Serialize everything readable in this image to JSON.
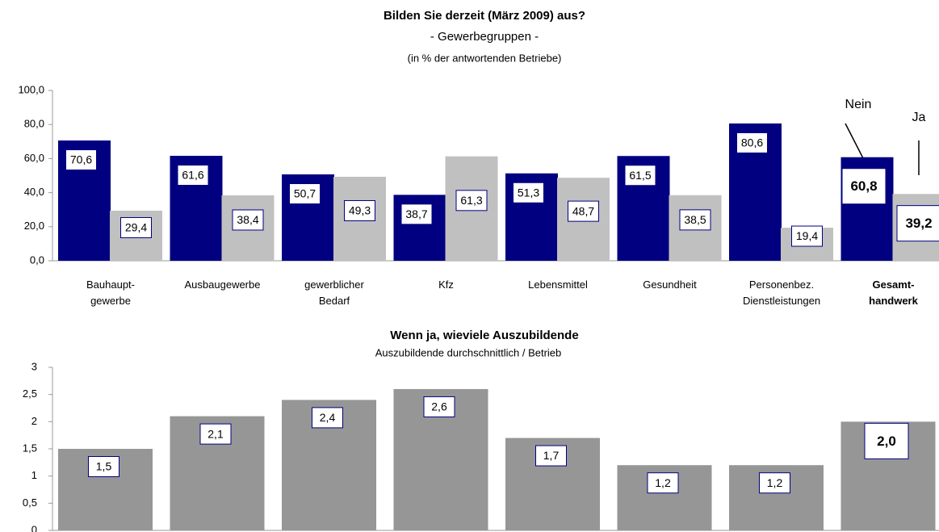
{
  "chart_data": [
    {
      "type": "bar",
      "title": "Bilden Sie derzeit (März 2009) aus?",
      "subtitle": "- Gewerbegruppen -",
      "note": "(in %  der antwortenden Betriebe)",
      "categories": [
        "Bauhaupt-\ngewerbe",
        "Ausbaugewerbe",
        "gewerblicher\nBedarf",
        "Kfz",
        "Lebensmittel",
        "Gesundheit",
        "Personenbez.\nDienstleistungen",
        "Gesamt-\nhandwerk"
      ],
      "series": [
        {
          "name": "Nein",
          "color": "#000080",
          "values": [
            70.6,
            61.6,
            50.7,
            38.7,
            51.3,
            61.5,
            80.6,
            60.8
          ],
          "value_labels": [
            "70,6",
            "61,6",
            "50,7",
            "38,7",
            "51,3",
            "61,5",
            "80,6",
            "60,8"
          ]
        },
        {
          "name": "Ja",
          "color": "#c0c0c0",
          "values": [
            29.4,
            38.4,
            49.3,
            61.3,
            48.7,
            38.5,
            19.4,
            39.2
          ],
          "value_labels": [
            "29,4",
            "38,4",
            "49,3",
            "61,3",
            "48,7",
            "38,5",
            "19,4",
            "39,2"
          ]
        }
      ],
      "ylim": [
        0,
        100
      ],
      "yticks": [
        {
          "value": 0,
          "label": "0,0"
        },
        {
          "value": 20,
          "label": "20,0"
        },
        {
          "value": 40,
          "label": "40,0"
        },
        {
          "value": 60,
          "label": "60,0"
        },
        {
          "value": 80,
          "label": "80,0"
        },
        {
          "value": 100,
          "label": "100,0"
        }
      ]
    },
    {
      "type": "bar",
      "title": "Wenn ja, wieviele Auszubildende",
      "subtitle": "Auszubildende durchschnittlich / Betrieb",
      "categories": [
        null,
        null,
        null,
        null,
        null,
        null,
        null,
        null
      ],
      "values": [
        1.5,
        2.1,
        2.4,
        2.6,
        1.7,
        1.2,
        1.2,
        2.0
      ],
      "value_labels": [
        "1,5",
        "2,1",
        "2,4",
        "2,6",
        "1,7",
        "1,2",
        "1,2",
        "2,0"
      ],
      "color": "#969696",
      "ylim": [
        0,
        3
      ],
      "yticks": [
        0,
        {
          "value": 0.5,
          "label": "0,5"
        },
        1,
        {
          "value": 1.5,
          "label": "1,5"
        },
        2,
        {
          "value": 2.5,
          "label": "2,5"
        },
        3
      ]
    }
  ]
}
